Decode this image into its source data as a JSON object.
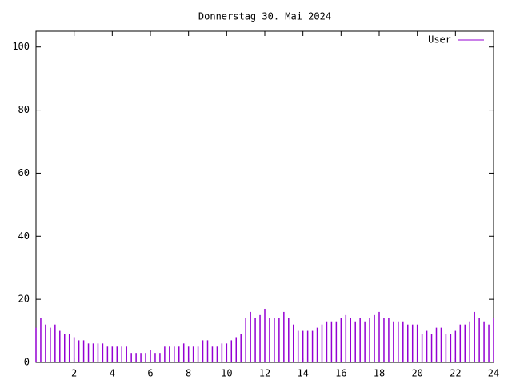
{
  "chart_data": {
    "type": "impulses",
    "title": "Donnerstag 30. Mai 2024",
    "x": [
      0,
      0.25,
      0.5,
      0.75,
      1,
      1.25,
      1.5,
      1.75,
      2,
      2.25,
      2.5,
      2.75,
      3,
      3.25,
      3.5,
      3.75,
      4,
      4.25,
      4.5,
      4.75,
      5,
      5.25,
      5.5,
      5.75,
      6,
      6.25,
      6.5,
      6.75,
      7,
      7.25,
      7.5,
      7.75,
      8,
      8.25,
      8.5,
      8.75,
      9,
      9.25,
      9.5,
      9.75,
      10,
      10.25,
      10.5,
      10.75,
      11,
      11.25,
      11.5,
      11.75,
      12,
      12.25,
      12.5,
      12.75,
      13,
      13.25,
      13.5,
      13.75,
      14,
      14.25,
      14.5,
      14.75,
      15,
      15.25,
      15.5,
      15.75,
      16,
      16.25,
      16.5,
      16.75,
      17,
      17.25,
      17.5,
      17.75,
      18,
      18.25,
      18.5,
      18.75,
      19,
      19.25,
      19.5,
      19.75,
      20,
      20.25,
      20.5,
      20.75,
      21,
      21.25,
      21.5,
      21.75,
      22,
      22.25,
      22.5,
      22.75,
      23,
      23.25,
      23.5,
      23.75,
      24
    ],
    "series": [
      {
        "name": "User",
        "color": "#9400d3",
        "values": [
          11,
          14,
          12,
          11,
          12,
          10,
          9,
          9,
          8,
          7,
          7,
          6,
          6,
          6,
          6,
          5,
          5,
          5,
          5,
          5,
          3,
          3,
          3,
          3,
          4,
          3,
          3,
          5,
          5,
          5,
          5,
          6,
          5,
          5,
          5,
          7,
          7,
          5,
          5,
          6,
          6,
          7,
          8,
          9,
          14,
          16,
          14,
          15,
          17,
          14,
          14,
          14,
          16,
          14,
          12,
          10,
          10,
          10,
          10,
          11,
          12,
          13,
          13,
          13,
          14,
          15,
          14,
          13,
          14,
          13,
          14,
          15,
          16,
          14,
          14,
          13,
          13,
          13,
          12,
          12,
          12,
          9,
          10,
          9,
          11,
          11,
          9,
          9,
          10,
          12,
          12,
          13,
          16,
          14,
          13,
          12,
          14
        ]
      }
    ],
    "xlim": [
      0,
      24
    ],
    "ylim": [
      0,
      105
    ],
    "xticks": [
      2,
      4,
      6,
      8,
      10,
      12,
      14,
      16,
      18,
      20,
      22,
      24
    ],
    "yticks": [
      0,
      20,
      40,
      60,
      80,
      100
    ],
    "legend": "top-right"
  }
}
